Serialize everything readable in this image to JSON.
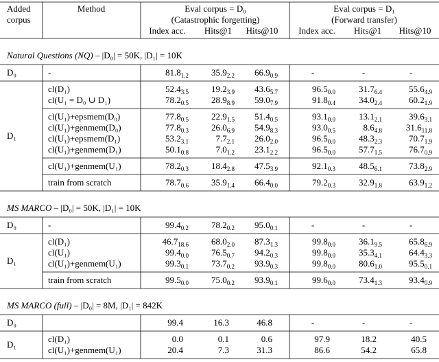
{
  "header": {
    "added_corpus": [
      "Added",
      "corpus"
    ],
    "method": "Method",
    "eval_d0": [
      "Eval corpus = D₀",
      "(Catastrophic forgetting)"
    ],
    "eval_d1": [
      "Eval corpus = D₁",
      "(Forward transfer)"
    ],
    "metrics": [
      "Index acc.",
      "Hits@1",
      "Hits@10",
      "Index acc.",
      "Hits@1",
      "Hits@10"
    ]
  },
  "sections": [
    {
      "name": "Natural Questions (NQ)",
      "stats": "– |D₀| = 50K, |D₁| = 10K",
      "groups": [
        {
          "corpus": "D₀",
          "blocks": [
            [
              {
                "method": "-",
                "cells": [
                  [
                    "81.8",
                    "1.2"
                  ],
                  [
                    "35.9",
                    "2.2"
                  ],
                  [
                    "66.9",
                    "0.9"
                  ],
                  [
                    "-"
                  ],
                  [
                    "-"
                  ],
                  [
                    "-"
                  ]
                ]
              }
            ]
          ]
        },
        {
          "corpus": "D₁",
          "blocks": [
            [
              {
                "method": "cl(D₁)",
                "cells": [
                  [
                    "52.4",
                    "3.5"
                  ],
                  [
                    "19.2",
                    "3.9"
                  ],
                  [
                    "43.6",
                    "5.7"
                  ],
                  [
                    "96.5",
                    "0.0"
                  ],
                  [
                    "31.7",
                    "6.4"
                  ],
                  [
                    "55.6",
                    "4.9"
                  ]
                ]
              },
              {
                "method": "cl(U₁ = D₀ ∪ D₁)",
                "cells": [
                  [
                    "78.2",
                    "0.5"
                  ],
                  [
                    "28.9",
                    "8.9"
                  ],
                  [
                    "59.0",
                    "7.9"
                  ],
                  [
                    "91.8",
                    "0.4"
                  ],
                  [
                    "34.0",
                    "2.4"
                  ],
                  [
                    "60.2",
                    "1.9"
                  ]
                ]
              }
            ],
            [
              {
                "method": "cl(U₁)+epsmem(D₀)",
                "cells": [
                  [
                    "77.8",
                    "0.5"
                  ],
                  [
                    "22.9",
                    "1.5"
                  ],
                  [
                    "51.4",
                    "0.5"
                  ],
                  [
                    "93.1",
                    "0.0"
                  ],
                  [
                    "13.1",
                    "2.1"
                  ],
                  [
                    "39.6",
                    "3.1"
                  ]
                ]
              },
              {
                "method": "cl(U₁)+genmem(D₀)",
                "cells": [
                  [
                    "77.8",
                    "0.3"
                  ],
                  [
                    "26.0",
                    "6.9"
                  ],
                  [
                    "54.9",
                    "8.3"
                  ],
                  [
                    "93.0",
                    "0.5"
                  ],
                  [
                    "8.6",
                    "4.8"
                  ],
                  [
                    "31.6",
                    "11.8"
                  ]
                ]
              },
              {
                "method": "cl(U₁)+epsmem(D₁)",
                "cells": [
                  [
                    "53.2",
                    "3.1"
                  ],
                  [
                    "7.7",
                    "2.1"
                  ],
                  [
                    "26.0",
                    "2.0"
                  ],
                  [
                    "96.5",
                    "0.0"
                  ],
                  [
                    "48.3",
                    "2.3"
                  ],
                  [
                    "70.7",
                    "1.9"
                  ]
                ]
              },
              {
                "method": "cl(U₁)+genmem(D₁)",
                "cells": [
                  [
                    "50.1",
                    "0.8"
                  ],
                  [
                    "7.0",
                    "1.2"
                  ],
                  [
                    "23.1",
                    "2.2"
                  ],
                  [
                    "96.5",
                    "0.0"
                  ],
                  [
                    "57.7",
                    "1.5"
                  ],
                  [
                    "76.7",
                    "0.9"
                  ]
                ]
              }
            ],
            [
              {
                "method": "cl(U₁)+genmem(U₁)",
                "cells": [
                  [
                    "78.2",
                    "0.3"
                  ],
                  [
                    "18.4",
                    "2.8"
                  ],
                  [
                    "47.5",
                    "3.9"
                  ],
                  [
                    "92.1",
                    "0.3"
                  ],
                  [
                    "48.5",
                    "6.1"
                  ],
                  [
                    "73.8",
                    "2.9"
                  ]
                ]
              }
            ],
            [
              {
                "method": "train from scratch",
                "cells": [
                  [
                    "78.7",
                    "0.6"
                  ],
                  [
                    "35.9",
                    "1.4"
                  ],
                  [
                    "66.4",
                    "0.0"
                  ],
                  [
                    "79.2",
                    "0.3"
                  ],
                  [
                    "32.9",
                    "1.8"
                  ],
                  [
                    "63.9",
                    "1.2"
                  ]
                ]
              }
            ]
          ]
        }
      ]
    },
    {
      "name": "MS MARCO",
      "stats": "– |D₀| = 50K, |D₁| = 10K",
      "groups": [
        {
          "corpus": "D₀",
          "blocks": [
            [
              {
                "method": "-",
                "cells": [
                  [
                    "99.4",
                    "0.2"
                  ],
                  [
                    "78.2",
                    "0.2"
                  ],
                  [
                    "95.0",
                    "0.1"
                  ],
                  [
                    "-"
                  ],
                  [
                    "-"
                  ],
                  [
                    "-"
                  ]
                ]
              }
            ]
          ]
        },
        {
          "corpus": "D₁",
          "blocks": [
            [
              {
                "method": "cl(D₁)",
                "cells": [
                  [
                    "46.7",
                    "18.6"
                  ],
                  [
                    "68.0",
                    "2.0"
                  ],
                  [
                    "87.3",
                    "1.3"
                  ],
                  [
                    "99.8",
                    "0.0"
                  ],
                  [
                    "36.1",
                    "9.5"
                  ],
                  [
                    "65.8",
                    "6.9"
                  ]
                ]
              },
              {
                "method": "cl(U₁)",
                "cells": [
                  [
                    "99.4",
                    "0.0"
                  ],
                  [
                    "76.5",
                    "0.7"
                  ],
                  [
                    "94.2",
                    "0.3"
                  ],
                  [
                    "99.8",
                    "0.0"
                  ],
                  [
                    "35.3",
                    "4.1"
                  ],
                  [
                    "64.4",
                    "3.3"
                  ]
                ]
              },
              {
                "method": "cl(U₁)+genmem(U₁)",
                "cells": [
                  [
                    "99.3",
                    "0.1"
                  ],
                  [
                    "73.7",
                    "0.2"
                  ],
                  [
                    "93.9",
                    "0.3"
                  ],
                  [
                    "99.8",
                    "0.0"
                  ],
                  [
                    "80.6",
                    "1.0"
                  ],
                  [
                    "95.5",
                    "0.1"
                  ]
                ]
              }
            ],
            [
              {
                "method": "train from scratch",
                "cells": [
                  [
                    "99.5",
                    "0.0"
                  ],
                  [
                    "75.0",
                    "0.2"
                  ],
                  [
                    "93.9",
                    "0.1"
                  ],
                  [
                    "99.6",
                    "0.0"
                  ],
                  [
                    "73.4",
                    "1.3"
                  ],
                  [
                    "93.4",
                    "0.9"
                  ]
                ]
              }
            ]
          ]
        }
      ]
    },
    {
      "name": "MS MARCO (full)",
      "stats": "– |D₀| = 8M, |D₁| = 842K",
      "groups": [
        {
          "corpus": "D₀",
          "blocks": [
            [
              {
                "cells": [
                  [
                    "99.4"
                  ],
                  [
                    "16.3"
                  ],
                  [
                    "46.8"
                  ],
                  [
                    "-"
                  ],
                  [
                    "-"
                  ],
                  [
                    "-"
                  ]
                ]
              }
            ]
          ]
        },
        {
          "corpus": "D₁",
          "blocks": [
            [
              {
                "method": "cl(D₁)",
                "cells": [
                  [
                    "0.0"
                  ],
                  [
                    "0.1"
                  ],
                  [
                    "0.6"
                  ],
                  [
                    "97.9"
                  ],
                  [
                    "18.2"
                  ],
                  [
                    "40.5"
                  ]
                ]
              },
              {
                "method": "cl(U₁)+genmem(U₁)",
                "cells": [
                  [
                    "20.4"
                  ],
                  [
                    "7.3"
                  ],
                  [
                    "31.3"
                  ],
                  [
                    "86.6"
                  ],
                  [
                    "54.2"
                  ],
                  [
                    "65.8"
                  ]
                ]
              }
            ]
          ]
        }
      ]
    }
  ]
}
